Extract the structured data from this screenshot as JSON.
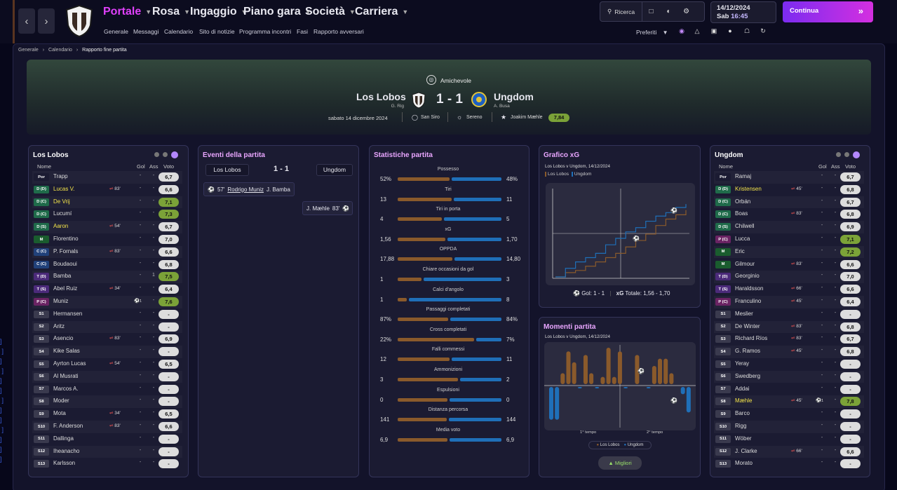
{
  "nav": {
    "menus": [
      {
        "label": "Portale",
        "active": true
      },
      {
        "label": "Rosa"
      },
      {
        "label": "Ingaggio"
      },
      {
        "label": "Piano gara"
      },
      {
        "label": "Società"
      },
      {
        "label": "Carriera"
      }
    ],
    "submenu": [
      "Generale",
      "Messaggi",
      "Calendario",
      "Sito di notizie",
      "Programma incontri",
      "Fasi",
      "Rapporto avversari"
    ],
    "search_label": "Ricerca",
    "date": "14/12/2024",
    "day": "Sab",
    "time": "16:45",
    "continue_label": "Continua",
    "preferiti": "Preferiti"
  },
  "breadcrumb": [
    "Generale",
    "Calendario",
    "Rapporto fine partita"
  ],
  "match": {
    "competition": "Amichevole",
    "home": "Los Lobos",
    "home_coach": "G. Rig",
    "away": "Ungdom",
    "away_coach": "A. Busa",
    "score": "1 - 1",
    "date": "sabato 14 dicembre 2024",
    "stadium": "San Siro",
    "weather": "Sereno",
    "motm": "Joakim Mæhle",
    "motm_rating": "7,84"
  },
  "home_panel": {
    "title": "Los Lobos",
    "cols": [
      "Nome",
      "Gol",
      "Ass",
      "Voto"
    ],
    "players": [
      {
        "pos": "Por",
        "name": "Trapp",
        "g": "-",
        "a": "-",
        "r": "6,7"
      },
      {
        "pos": "D (D)",
        "name": "Lucas V.",
        "yel": true,
        "sub": "83'",
        "g": "-",
        "a": "-",
        "r": "6,6"
      },
      {
        "pos": "D (C)",
        "name": "De Vrij",
        "yel": true,
        "g": "-",
        "a": "-",
        "r": "7,1",
        "green": true
      },
      {
        "pos": "D (C)",
        "name": "Lucumí",
        "g": "-",
        "a": "-",
        "r": "7,3",
        "green": true
      },
      {
        "pos": "D (S)",
        "name": "Aaron",
        "yel": true,
        "sub": "54'",
        "g": "-",
        "a": "-",
        "r": "6,7"
      },
      {
        "pos": "M",
        "name": "Florentino",
        "g": "-",
        "a": "-",
        "r": "7,0"
      },
      {
        "pos": "C (C)",
        "name": "P. Fornals",
        "sub": "83'",
        "g": "-",
        "a": "-",
        "r": "6,6"
      },
      {
        "pos": "C (C)",
        "name": "Boudaoui",
        "g": "-",
        "a": "-",
        "r": "6,8"
      },
      {
        "pos": "T (D)",
        "name": "Bamba",
        "g": "-",
        "a": "1",
        "r": "7,5",
        "green": true
      },
      {
        "pos": "T (S)",
        "name": "Abel Ruiz",
        "sub": "34'",
        "g": "-",
        "a": "-",
        "r": "6,4"
      },
      {
        "pos": "P (C)",
        "name": "Muniz",
        "goal": "1",
        "g": "-",
        "a": "-",
        "r": "7,6",
        "green": true
      },
      {
        "pos": "S1",
        "name": "Hermansen",
        "g": "-",
        "a": "-",
        "r": "-"
      },
      {
        "pos": "S2",
        "name": "Aritz",
        "g": "-",
        "a": "-",
        "r": "-"
      },
      {
        "pos": "S3",
        "name": "Asencio",
        "sub": "83'",
        "g": "-",
        "a": "-",
        "r": "6,9"
      },
      {
        "pos": "S4",
        "name": "Kike Salas",
        "g": "-",
        "a": "-",
        "r": "-"
      },
      {
        "pos": "S5",
        "name": "Ayrton Lucas",
        "sub": "54'",
        "g": "-",
        "a": "-",
        "r": "6,5"
      },
      {
        "pos": "S6",
        "name": "Al Musrati",
        "g": "-",
        "a": "-",
        "r": "-"
      },
      {
        "pos": "S7",
        "name": "Marcos A.",
        "g": "-",
        "a": "-",
        "r": "-"
      },
      {
        "pos": "S8",
        "name": "Moder",
        "g": "-",
        "a": "-",
        "r": "-"
      },
      {
        "pos": "S9",
        "name": "Mota",
        "sub": "34'",
        "g": "-",
        "a": "-",
        "r": "6,5"
      },
      {
        "pos": "S10",
        "name": "F. Anderson",
        "sub": "83'",
        "g": "-",
        "a": "-",
        "r": "6,6"
      },
      {
        "pos": "S11",
        "name": "Dallinga",
        "g": "-",
        "a": "-",
        "r": "-"
      },
      {
        "pos": "S12",
        "name": "Iheanacho",
        "g": "-",
        "a": "-",
        "r": "-"
      },
      {
        "pos": "S13",
        "name": "Karlsson",
        "g": "-",
        "a": "-",
        "r": "-"
      }
    ]
  },
  "away_panel": {
    "title": "Ungdom",
    "cols": [
      "Nome",
      "Gol",
      "Ass",
      "Voto"
    ],
    "players": [
      {
        "pos": "Por",
        "name": "Ramaj",
        "g": "-",
        "a": "-",
        "r": "6,7"
      },
      {
        "pos": "D (D)",
        "name": "Kristensen",
        "yel": true,
        "sub": "45'",
        "g": "-",
        "a": "-",
        "r": "6,8"
      },
      {
        "pos": "D (C)",
        "name": "Orbán",
        "g": "-",
        "a": "-",
        "r": "6,7"
      },
      {
        "pos": "D (C)",
        "name": "Boas",
        "sub": "83'",
        "g": "-",
        "a": "-",
        "r": "6,8"
      },
      {
        "pos": "D (S)",
        "name": "Chilwell",
        "g": "-",
        "a": "-",
        "r": "6,9"
      },
      {
        "pos": "P (C)",
        "name": "Lucca",
        "g": "-",
        "a": "-",
        "r": "7,1",
        "green": true
      },
      {
        "pos": "M",
        "name": "Eric",
        "g": "-",
        "a": "-",
        "r": "7,2",
        "green": true
      },
      {
        "pos": "M",
        "name": "Gilmour",
        "sub": "83'",
        "g": "-",
        "a": "-",
        "r": "6,6"
      },
      {
        "pos": "T (D)",
        "name": "Georginio",
        "g": "-",
        "a": "-",
        "r": "7,0"
      },
      {
        "pos": "T (S)",
        "name": "Haraldsson",
        "sub": "66'",
        "g": "-",
        "a": "-",
        "r": "6,6"
      },
      {
        "pos": "P (C)",
        "name": "Franculino",
        "sub": "45'",
        "g": "-",
        "a": "-",
        "r": "6,4"
      },
      {
        "pos": "S1",
        "name": "Meslier",
        "g": "-",
        "a": "-",
        "r": "-"
      },
      {
        "pos": "S2",
        "name": "De Winter",
        "sub": "83'",
        "g": "-",
        "a": "-",
        "r": "6,8"
      },
      {
        "pos": "S3",
        "name": "Richard Ríos",
        "sub": "83'",
        "g": "-",
        "a": "-",
        "r": "6,7"
      },
      {
        "pos": "S4",
        "name": "G. Ramos",
        "sub": "45'",
        "g": "-",
        "a": "-",
        "r": "6,8"
      },
      {
        "pos": "S5",
        "name": "Yeray",
        "g": "-",
        "a": "-",
        "r": "-"
      },
      {
        "pos": "S6",
        "name": "Swedberg",
        "g": "-",
        "a": "-",
        "r": "-"
      },
      {
        "pos": "S7",
        "name": "Addai",
        "g": "-",
        "a": "-",
        "r": "-"
      },
      {
        "pos": "S8",
        "name": "Mæhle",
        "yel": true,
        "sub": "45'",
        "goal": "1",
        "g": "-",
        "a": "-",
        "r": "7,8",
        "green": true
      },
      {
        "pos": "S9",
        "name": "Barco",
        "g": "-",
        "a": "-",
        "r": "-"
      },
      {
        "pos": "S10",
        "name": "Rigg",
        "g": "-",
        "a": "-",
        "r": "-"
      },
      {
        "pos": "S11",
        "name": "Wöber",
        "g": "-",
        "a": "-",
        "r": "-"
      },
      {
        "pos": "S12",
        "name": "J. Clarke",
        "sub": "66'",
        "g": "-",
        "a": "-",
        "r": "6,6"
      },
      {
        "pos": "S13",
        "name": "Morato",
        "g": "-",
        "a": "-",
        "r": "-"
      }
    ]
  },
  "events": {
    "title": "Eventi della partita",
    "home": "Los Lobos",
    "away": "Ungdom",
    "score": "1 - 1",
    "home_event": {
      "minute": "57'",
      "scorer": "Rodrigo Muniz",
      "assist": "J. Bamba"
    },
    "away_event": {
      "minute": "83'",
      "scorer": "J. Mæhle"
    }
  },
  "stats": {
    "title": "Statistiche partita",
    "rows": [
      {
        "label": "Possesso",
        "h": "52%",
        "a": "48%",
        "hv": 52,
        "av": 48
      },
      {
        "label": "Tiri",
        "h": "13",
        "a": "11",
        "hv": 13,
        "av": 11
      },
      {
        "label": "Tiri in porta",
        "h": "4",
        "a": "5",
        "hv": 4,
        "av": 5
      },
      {
        "label": "xG",
        "h": "1,56",
        "a": "1,70",
        "hv": 1.56,
        "av": 1.7
      },
      {
        "label": "OPPDA",
        "h": "17,88",
        "a": "14,80",
        "hv": 17.88,
        "av": 14.8
      },
      {
        "label": "Chiare occasioni da gol",
        "h": "1",
        "a": "3",
        "hv": 1,
        "av": 3
      },
      {
        "label": "Calci d'angolo",
        "h": "1",
        "a": "8",
        "hv": 1,
        "av": 8
      },
      {
        "label": "Passaggi completati",
        "h": "87%",
        "a": "84%",
        "hv": 87,
        "av": 84
      },
      {
        "label": "Cross completati",
        "h": "22%",
        "a": "7%",
        "hv": 22,
        "av": 7
      },
      {
        "label": "Falli commessi",
        "h": "12",
        "a": "11",
        "hv": 12,
        "av": 11
      },
      {
        "label": "Ammonizioni",
        "h": "3",
        "a": "2",
        "hv": 3,
        "av": 2
      },
      {
        "label": "Espulsioni",
        "h": "0",
        "a": "0",
        "hv": 0,
        "av": 0
      },
      {
        "label": "Distanza percorsa",
        "h": "141",
        "a": "144",
        "hv": 141,
        "av": 144
      },
      {
        "label": "Media voto",
        "h": "6,9",
        "a": "6,9",
        "hv": 6.9,
        "av": 6.9
      }
    ]
  },
  "xg_chart": {
    "title": "Grafico xG",
    "subtitle": "Los Lobos v Ungdom, 14/12/2024",
    "legend": [
      "Los Lobos",
      "Ungdom"
    ],
    "footer_goals": "Gol: 1 - 1",
    "footer_xg_label": "xG",
    "footer_xg": "Totale: 1,56 - 1,70"
  },
  "moments": {
    "title": "Momenti partita",
    "subtitle": "Los Lobos v Ungdom, 14/12/2024",
    "half1": "1° tempo",
    "half2": "2° tempo",
    "legend": [
      "Los Lobos",
      "Ungdom"
    ],
    "button": "Migliori"
  },
  "colors": {
    "home": "#8a5a2b",
    "away": "#1f6fb8",
    "accent": "#e040fb",
    "green": "#7ba238"
  },
  "chart_data": [
    {
      "type": "line",
      "title": "Grafico xG",
      "series": [
        {
          "name": "Los Lobos",
          "values": [
            0,
            0.1,
            0.15,
            0.25,
            0.35,
            0.45,
            0.55,
            0.7,
            0.85,
            1.0,
            1.2,
            1.35,
            1.45,
            1.56
          ]
        },
        {
          "name": "Ungdom",
          "values": [
            0,
            0.2,
            0.35,
            0.45,
            0.55,
            0.75,
            0.9,
            1.05,
            1.15,
            1.3,
            1.42,
            1.5,
            1.62,
            1.7
          ]
        }
      ]
    },
    {
      "type": "bar",
      "title": "Momenti partita",
      "series": [
        {
          "name": "Los Lobos",
          "values": [
            0,
            0,
            0.3,
            0.9,
            0.6,
            0,
            0.8,
            0.3,
            0,
            0.2,
            1.0,
            0.2,
            0.9,
            0,
            0,
            0.8,
            0,
            0,
            0.5,
            0.7,
            0.7,
            0.3,
            0,
            0,
            0
          ]
        },
        {
          "name": "Ungdom",
          "values": [
            0.9,
            0.9,
            0,
            0,
            0,
            0.02,
            0,
            0,
            0.02,
            0,
            0,
            0,
            0,
            0.02,
            0,
            0,
            0,
            0.02,
            0,
            0,
            0,
            0,
            0,
            0.2,
            0.7
          ]
        }
      ]
    }
  ]
}
